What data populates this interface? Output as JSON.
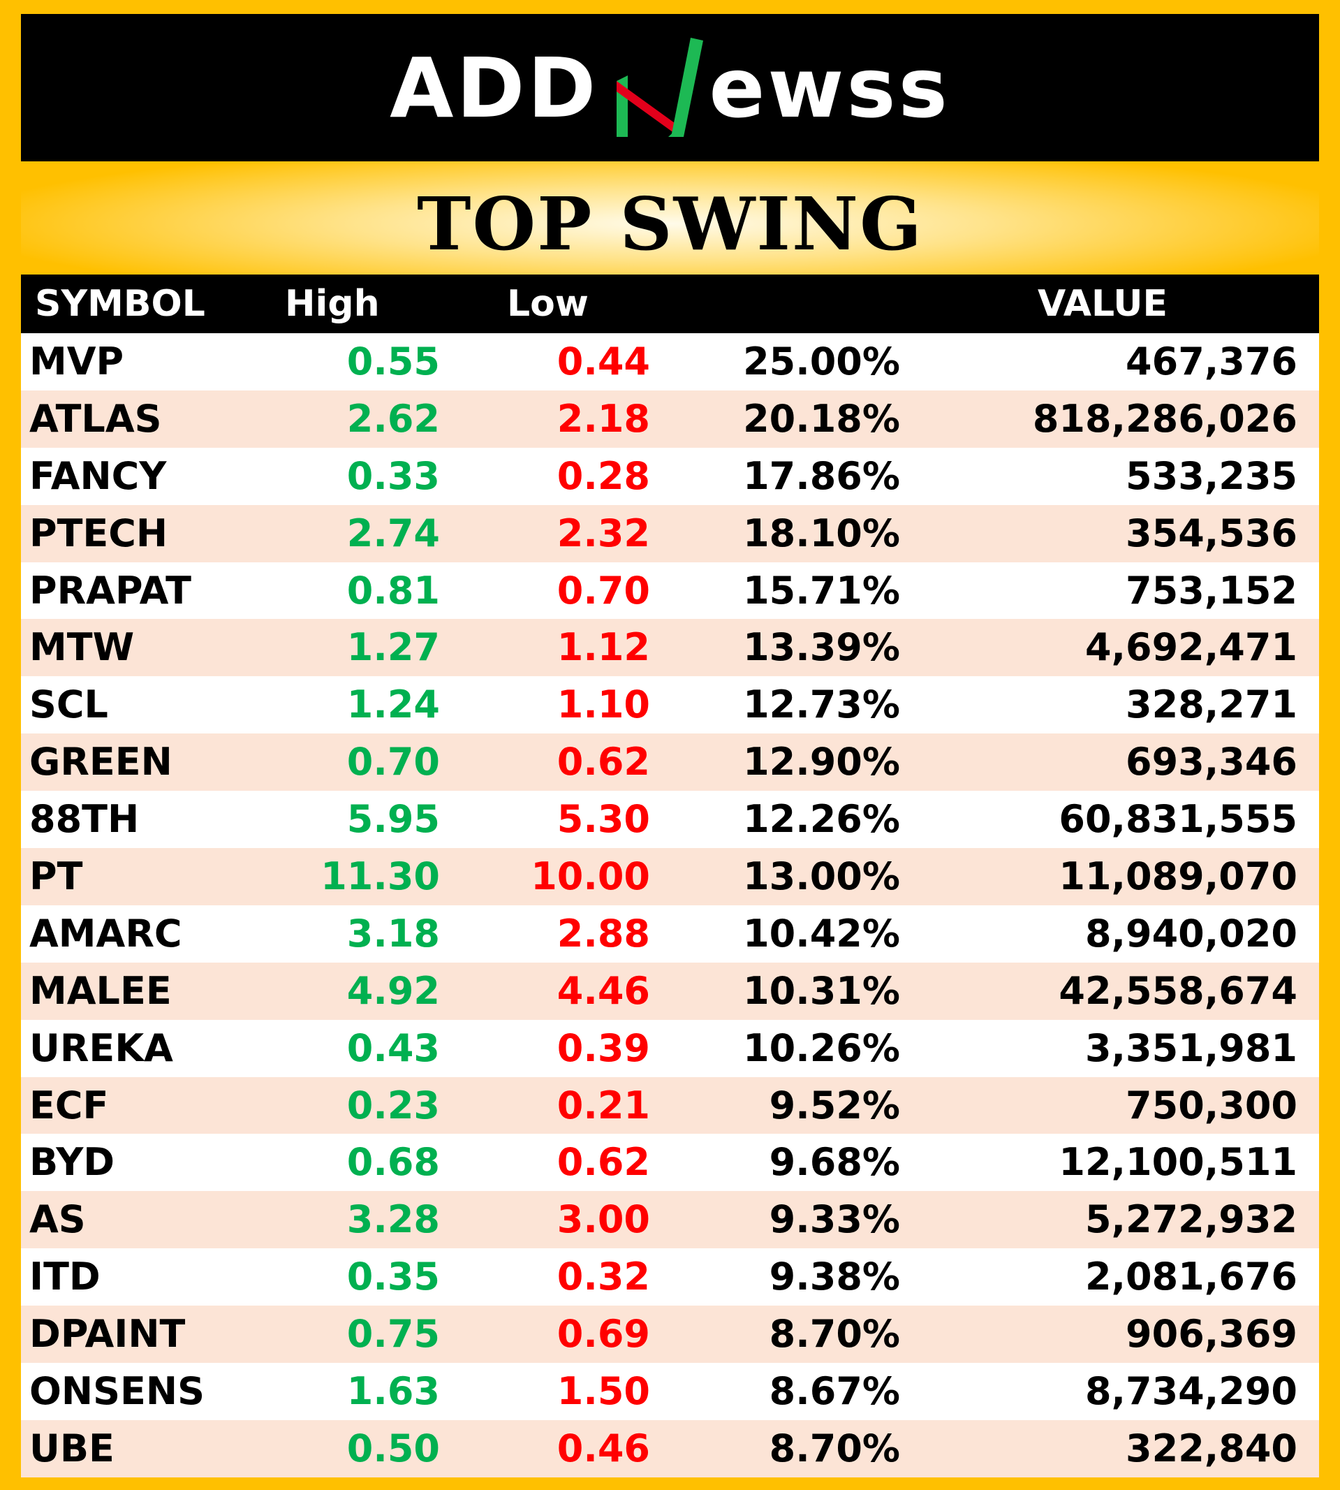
{
  "brand": {
    "name_left": "ADD",
    "name_mid": "N",
    "name_right": "ewss",
    "colors": {
      "green": "#1DB954",
      "red": "#E3001B"
    }
  },
  "title": "TOP SWING",
  "headers": {
    "symbol": "SYMBOL",
    "high": "High",
    "low": "Low",
    "pct": "",
    "value": "VALUE"
  },
  "rows": [
    {
      "symbol": "MVP",
      "high": "0.55",
      "low": "0.44",
      "pct": "25.00%",
      "value": "467,376"
    },
    {
      "symbol": "ATLAS",
      "high": "2.62",
      "low": "2.18",
      "pct": "20.18%",
      "value": "818,286,026"
    },
    {
      "symbol": "FANCY",
      "high": "0.33",
      "low": "0.28",
      "pct": "17.86%",
      "value": "533,235"
    },
    {
      "symbol": "PTECH",
      "high": "2.74",
      "low": "2.32",
      "pct": "18.10%",
      "value": "354,536"
    },
    {
      "symbol": "PRAPAT",
      "high": "0.81",
      "low": "0.70",
      "pct": "15.71%",
      "value": "753,152"
    },
    {
      "symbol": "MTW",
      "high": "1.27",
      "low": "1.12",
      "pct": "13.39%",
      "value": "4,692,471"
    },
    {
      "symbol": "SCL",
      "high": "1.24",
      "low": "1.10",
      "pct": "12.73%",
      "value": "328,271"
    },
    {
      "symbol": "GREEN",
      "high": "0.70",
      "low": "0.62",
      "pct": "12.90%",
      "value": "693,346"
    },
    {
      "symbol": "88TH",
      "high": "5.95",
      "low": "5.30",
      "pct": "12.26%",
      "value": "60,831,555"
    },
    {
      "symbol": "PT",
      "high": "11.30",
      "low": "10.00",
      "pct": "13.00%",
      "value": "11,089,070"
    },
    {
      "symbol": "AMARC",
      "high": "3.18",
      "low": "2.88",
      "pct": "10.42%",
      "value": "8,940,020"
    },
    {
      "symbol": "MALEE",
      "high": "4.92",
      "low": "4.46",
      "pct": "10.31%",
      "value": "42,558,674"
    },
    {
      "symbol": "UREKA",
      "high": "0.43",
      "low": "0.39",
      "pct": "10.26%",
      "value": "3,351,981"
    },
    {
      "symbol": "ECF",
      "high": "0.23",
      "low": "0.21",
      "pct": "9.52%",
      "value": "750,300"
    },
    {
      "symbol": "BYD",
      "high": "0.68",
      "low": "0.62",
      "pct": "9.68%",
      "value": "12,100,511"
    },
    {
      "symbol": "AS",
      "high": "3.28",
      "low": "3.00",
      "pct": "9.33%",
      "value": "5,272,932"
    },
    {
      "symbol": "ITD",
      "high": "0.35",
      "low": "0.32",
      "pct": "9.38%",
      "value": "2,081,676"
    },
    {
      "symbol": "DPAINT",
      "high": "0.75",
      "low": "0.69",
      "pct": "8.70%",
      "value": "906,369"
    },
    {
      "symbol": "ONSENS",
      "high": "1.63",
      "low": "1.50",
      "pct": "8.67%",
      "value": "8,734,290"
    },
    {
      "symbol": "UBE",
      "high": "0.50",
      "low": "0.46",
      "pct": "8.70%",
      "value": "322,840"
    }
  ]
}
